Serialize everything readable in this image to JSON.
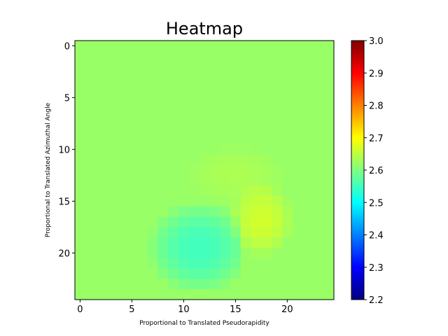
{
  "chart_data": {
    "type": "heatmap",
    "title": "Heatmap",
    "xlabel": "Proportional to Translated Pseudorapidity",
    "ylabel": "Proportional to Translated Azimuthal Angle",
    "colormap": "jet",
    "grid": false,
    "legend": "colorbar on right",
    "rows": 25,
    "cols": 25,
    "xlim": [
      -0.5,
      24.5
    ],
    "ylim": [
      24.5,
      -0.5
    ],
    "xticks": [
      0,
      5,
      10,
      15,
      20
    ],
    "yticks": [
      0,
      5,
      10,
      15,
      20
    ],
    "colorbar": {
      "range": [
        2.2,
        3.0
      ],
      "ticks": [
        "2.2",
        "2.3",
        "2.4",
        "2.5",
        "2.6",
        "2.7",
        "2.8",
        "2.9",
        "3.0"
      ]
    },
    "baseline_value": 2.62,
    "features": [
      {
        "description": "low region",
        "center_col": 11.5,
        "center_row": 19.5,
        "value": 2.55
      },
      {
        "description": "high region",
        "center_col": 17.5,
        "center_row": 16.8,
        "value": 2.665
      },
      {
        "description": "slight rise",
        "center_col": 15.0,
        "center_row": 12.5,
        "value": 2.635
      }
    ]
  }
}
